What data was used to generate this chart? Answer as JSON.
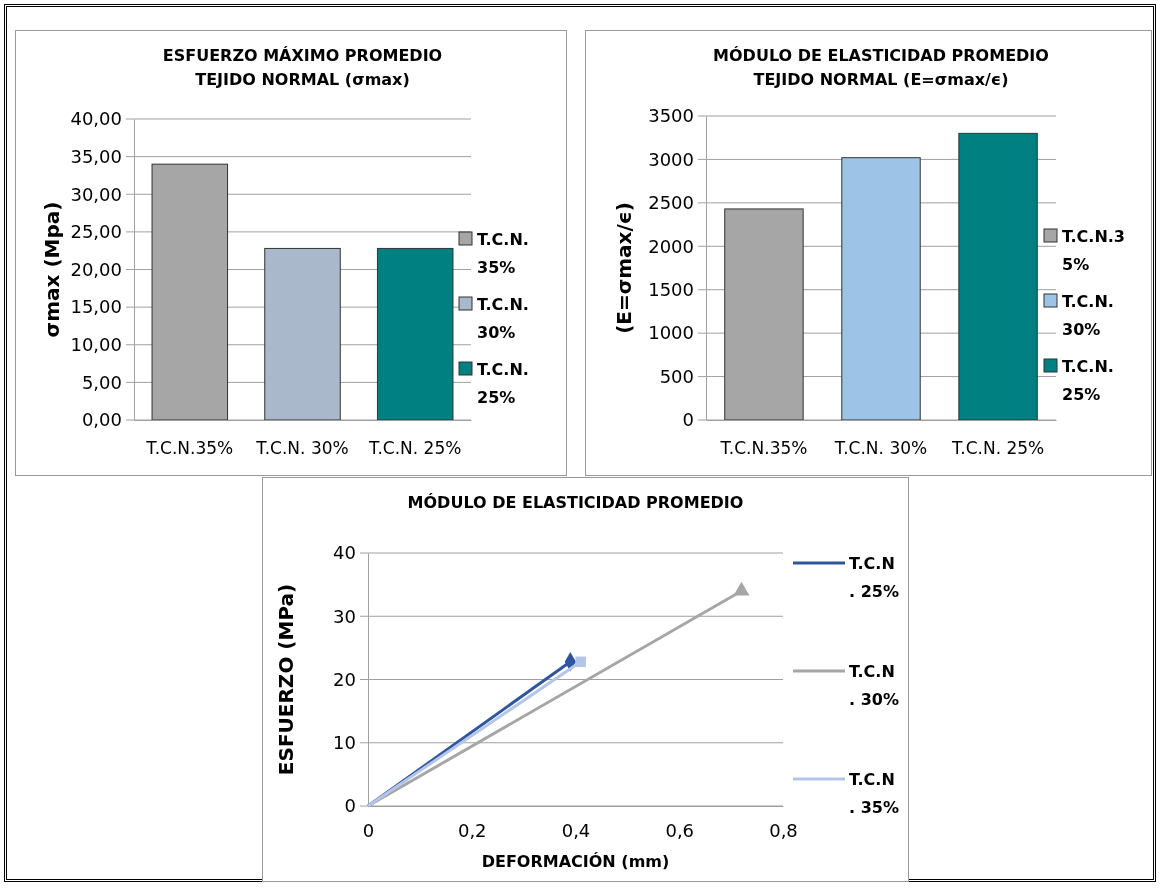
{
  "chart_data": [
    {
      "type": "bar",
      "stacked": true,
      "title": "ESFUERZO MÁXIMO PROMEDIO\nTEJIDO NORMAL (σmax)",
      "ylabel": "σmax (Mpa)",
      "categories": [
        "T.C.N.35%",
        "T.C.N. 30%",
        "T.C.N. 25%"
      ],
      "series": [
        {
          "name": "T.C.N.35%",
          "color": "#a6a6a6",
          "values": [
            34,
            null,
            null
          ]
        },
        {
          "name": "T.C.N. 30%",
          "color": "#aab8cc",
          "values": [
            null,
            22.8,
            null
          ]
        },
        {
          "name": "T.C.N. 25%",
          "color": "#008080",
          "values": [
            null,
            null,
            22.8
          ]
        }
      ],
      "ylim": [
        0,
        40
      ],
      "yticks": [
        {
          "value": 0,
          "label": "0,00"
        },
        {
          "value": 5,
          "label": "5,00"
        },
        {
          "value": 10,
          "label": "10,00"
        },
        {
          "value": 15,
          "label": "15,00"
        },
        {
          "value": 20,
          "label": "20,00"
        },
        {
          "value": 25,
          "label": "25,00"
        },
        {
          "value": 30,
          "label": "30,00"
        },
        {
          "value": 35,
          "label": "35,00"
        },
        {
          "value": 40,
          "label": "40,00"
        }
      ],
      "grid": "y",
      "legend": "right"
    },
    {
      "type": "bar",
      "stacked": true,
      "title": "MÓDULO DE ELASTICIDAD PROMEDIO\nTEJIDO NORMAL  (E=σmax/ϵ)",
      "ylabel": "(E=σmax/ϵ)",
      "categories": [
        "T.C.N.35%",
        "T.C.N. 30%",
        "T.C.N. 25%"
      ],
      "series": [
        {
          "name": "T.C.N.35%",
          "color": "#a6a6a6",
          "values": [
            2430,
            null,
            null
          ]
        },
        {
          "name": "T.C.N. 30%",
          "color": "#9dc3e6",
          "values": [
            null,
            3020,
            null
          ]
        },
        {
          "name": "T.C.N. 25%",
          "color": "#008080",
          "values": [
            null,
            null,
            3300
          ]
        }
      ],
      "ylim": [
        0,
        3500
      ],
      "yticks": [
        0,
        500,
        1000,
        1500,
        2000,
        2500,
        3000,
        3500
      ],
      "grid": "y",
      "legend": "right"
    },
    {
      "type": "line",
      "title": "MÓDULO DE ELASTICIDAD PROMEDIO",
      "xlabel": "DEFORMACIÓN (mm)",
      "ylabel": "ESFUERZO (MPa)",
      "xlim": [
        0,
        0.8
      ],
      "xticks": [
        0,
        {
          "value": 0.2,
          "label": "0,2"
        },
        {
          "value": 0.4,
          "label": "0,4"
        },
        {
          "value": 0.6,
          "label": "0,6"
        },
        {
          "value": 0.8,
          "label": "0,8"
        }
      ],
      "ylim": [
        0,
        40
      ],
      "yticks": [
        0,
        10,
        20,
        30,
        40
      ],
      "grid": "y",
      "legend": "right",
      "series": [
        {
          "name": "T.C.N. 25%",
          "color": "#2f55a0",
          "x": [
            0,
            0.39
          ],
          "values": [
            0,
            22.8
          ],
          "marker": "diamond"
        },
        {
          "name": "T.C.N. 30%",
          "color": "#a6a6a6",
          "x": [
            0,
            0.72
          ],
          "values": [
            0,
            34
          ],
          "marker": "triangle"
        },
        {
          "name": "T.C.N. 35%",
          "color": "#b4c6e7",
          "x": [
            0,
            0.41
          ],
          "values": [
            0,
            22.8
          ],
          "marker": "square"
        }
      ]
    }
  ]
}
